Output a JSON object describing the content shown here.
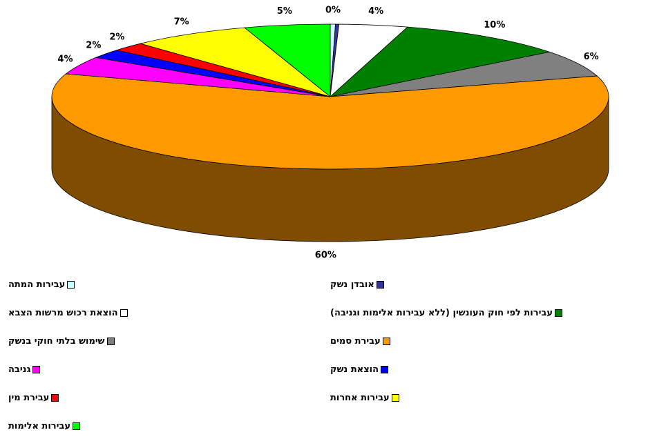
{
  "chart_data": {
    "type": "pie",
    "categories": [
      "עבירות המתה",
      "אובדן נשק",
      "הוצאת רכוש מרשות הצבא",
      "עבירות לפי חוק העונשין (ללא עבירות אלימות וגניבה)",
      "שימוש בלתי חוקי בנשק",
      "עבירת סמים",
      "גניבה",
      "הוצאת נשק",
      "עבירת מין",
      "עבירות אחרות",
      "עבירות אלימות"
    ],
    "values": [
      0.3,
      0.2,
      4,
      10,
      6,
      60,
      4,
      2,
      2,
      7,
      5
    ],
    "value_labels": [
      "0%",
      null,
      "4%",
      "10%",
      "6%",
      "60%",
      "4%",
      "2%",
      "2%",
      "7%",
      "5%"
    ],
    "colors": [
      "#ccffff",
      "#333399",
      "#ffffff",
      "#008000",
      "#808080",
      "#ff9900",
      "#ff00ff",
      "#0000ff",
      "#ff0000",
      "#ffff00",
      "#00ff00"
    ]
  }
}
